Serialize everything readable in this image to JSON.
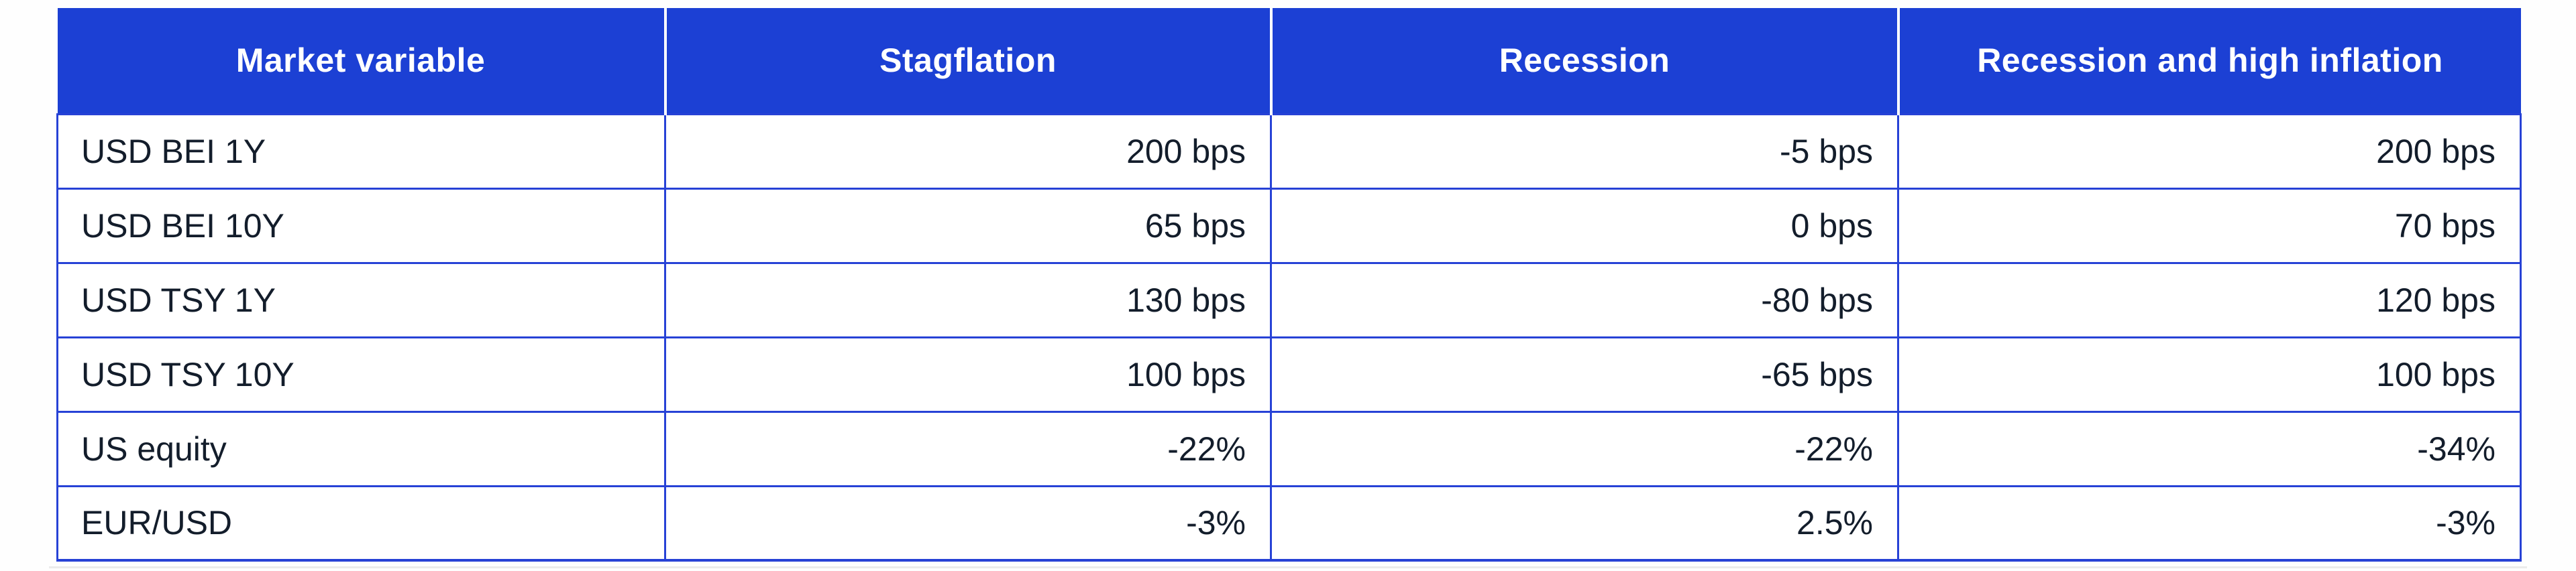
{
  "chart_data": {
    "type": "table",
    "columns": [
      "Market variable",
      "Stagflation",
      "Recession",
      "Recession and high inflation"
    ],
    "rows": [
      [
        "USD BEI 1Y",
        "200 bps",
        "-5 bps",
        "200 bps"
      ],
      [
        "USD BEI 10Y",
        "65 bps",
        "0 bps",
        "70 bps"
      ],
      [
        "USD TSY 1Y",
        "130 bps",
        "-80 bps",
        "120 bps"
      ],
      [
        "USD TSY 10Y",
        "100 bps",
        "-65 bps",
        "100 bps"
      ],
      [
        "US equity",
        "-22%",
        "-22%",
        "-34%"
      ],
      [
        "EUR/USD",
        "-3%",
        "2.5%",
        "-3%"
      ]
    ],
    "layout": {
      "header_position": "top",
      "label_alignment": "left",
      "value_alignment": "right",
      "grid": true
    }
  },
  "colors": {
    "header_bg": "#1c40d4",
    "border_blue": "#2742d6",
    "body_text": "#131d2b",
    "header_text": "#ffffff"
  }
}
